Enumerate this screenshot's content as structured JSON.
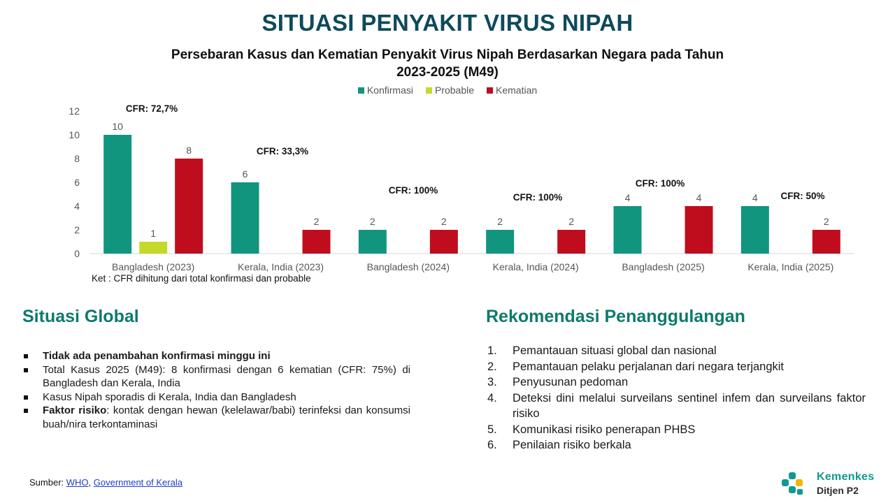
{
  "header": {
    "title": "SITUASI PENYAKIT VIRUS NIPAH"
  },
  "chart_data": {
    "type": "bar",
    "title": "Persebaran Kasus dan Kematian Penyakit Virus Nipah Berdasarkan Negara pada Tahun 2023-2025 (M49)",
    "categories": [
      "Bangladesh (2023)",
      "Kerala, India (2023)",
      "Bangladesh (2024)",
      "Kerala, India (2024)",
      "Bangladesh (2025)",
      "Kerala, India (2025)"
    ],
    "series": [
      {
        "name": "Konfirmasi",
        "color": "#11957f",
        "values": [
          10,
          6,
          2,
          2,
          4,
          4
        ]
      },
      {
        "name": "Probable",
        "color": "#c5d92a",
        "values": [
          1,
          null,
          null,
          null,
          null,
          null
        ]
      },
      {
        "name": "Kematian",
        "color": "#c00d1e",
        "values": [
          8,
          2,
          2,
          2,
          4,
          2
        ]
      }
    ],
    "annotations": [
      "CFR: 72,7%",
      "CFR: 33,3%",
      "CFR: 100%",
      "CFR: 100%",
      "CFR: 100%",
      "CFR: 50%"
    ],
    "ylim": [
      0,
      12
    ],
    "yticks": [
      0,
      2,
      4,
      6,
      8,
      10,
      12
    ],
    "grid": false,
    "legend": "top-center",
    "note": "Ket : CFR dihitung dari total konfirmasi dan probable"
  },
  "global": {
    "title": "Situasi Global",
    "bullets": [
      {
        "bold": "Tidak ada penambahan konfirmasi minggu ini",
        "text": ""
      },
      {
        "bold": "",
        "text": "Total Kasus 2025 (M49): 8 konfirmasi dengan 6 kematian (CFR: 75%) di Bangladesh dan Kerala, India"
      },
      {
        "bold": "",
        "text": "Kasus Nipah sporadis di Kerala, India dan Bangladesh"
      },
      {
        "bold": "Faktor risiko",
        "text": ": kontak dengan hewan (kelelawar/babi) terinfeksi dan konsumsi buah/nira terkontaminasi"
      }
    ]
  },
  "recommendations": {
    "title": "Rekomendasi Penanggulangan",
    "items": [
      {
        "num": "1.",
        "text": "Pemantauan situasi global dan nasional"
      },
      {
        "num": "2.",
        "text": "Pemantauan pelaku perjalanan dari negara terjangkit"
      },
      {
        "num": "3.",
        "text": "Penyusunan pedoman"
      },
      {
        "num": "4.",
        "text": "Deteksi dini melalui surveilans sentinel infem dan surveilans faktor risiko"
      },
      {
        "num": "5.",
        "text": "Komunikasi risiko penerapan PHBS"
      },
      {
        "num": "6.",
        "text": "Penilaian risiko berkala"
      }
    ]
  },
  "footer": {
    "source_label": "Sumber: ",
    "links": [
      "WHO",
      "Government of Kerala"
    ],
    "separator": ", ",
    "logo_name": "Kemenkes",
    "logo_sub": "Ditjen P2"
  }
}
